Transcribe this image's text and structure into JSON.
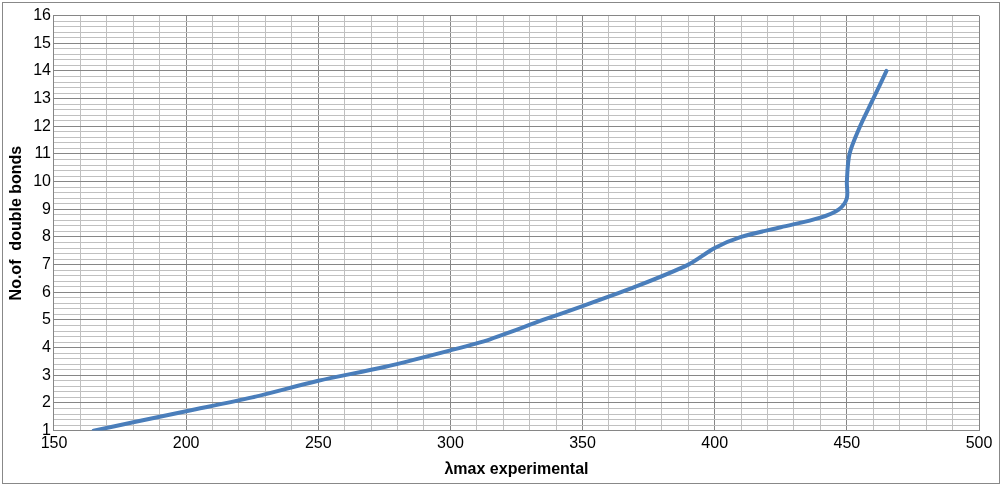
{
  "chart_data": {
    "type": "line",
    "xlabel": "λmax experimental",
    "ylabel": "No.of  double bonds",
    "x": [
      165,
      180,
      200,
      225,
      250,
      275,
      300,
      315,
      335,
      350,
      370,
      390,
      400,
      410,
      425,
      440,
      447,
      450,
      450,
      451,
      455,
      460,
      465
    ],
    "series": [
      {
        "color": "#4a7ebb",
        "values": [
          1,
          1.3,
          1.7,
          2.2,
          2.8,
          3.3,
          3.9,
          4.3,
          5,
          5.5,
          6.2,
          7,
          7.6,
          8,
          8.35,
          8.7,
          9,
          9.4,
          10,
          11,
          12,
          13,
          14
        ]
      }
    ],
    "xlim": [
      150,
      500
    ],
    "ylim": [
      1,
      16
    ],
    "grid": true,
    "legend": false,
    "marker": "none",
    "line_style": "solid",
    "xticks": [
      150,
      {
        "value": 160,
        "label": null
      },
      {
        "value": 170,
        "label": null
      },
      {
        "value": 180,
        "label": null
      },
      {
        "value": 190,
        "label": null
      },
      200,
      {
        "value": 210,
        "label": null
      },
      {
        "value": 220,
        "label": null
      },
      {
        "value": 230,
        "label": null
      },
      {
        "value": 240,
        "label": null
      },
      250,
      {
        "value": 260,
        "label": null
      },
      {
        "value": 270,
        "label": null
      },
      {
        "value": 280,
        "label": null
      },
      {
        "value": 290,
        "label": null
      },
      300,
      {
        "value": 310,
        "label": null
      },
      {
        "value": 320,
        "label": null
      },
      {
        "value": 330,
        "label": null
      },
      {
        "value": 340,
        "label": null
      },
      350,
      {
        "value": 360,
        "label": null
      },
      {
        "value": 370,
        "label": null
      },
      {
        "value": 380,
        "label": null
      },
      {
        "value": 390,
        "label": null
      },
      400,
      {
        "value": 410,
        "label": null
      },
      {
        "value": 420,
        "label": null
      },
      {
        "value": 430,
        "label": null
      },
      {
        "value": 440,
        "label": null
      },
      450,
      {
        "value": 460,
        "label": null
      },
      {
        "value": 470,
        "label": null
      },
      {
        "value": 480,
        "label": null
      },
      {
        "value": 490,
        "label": null
      },
      500
    ],
    "yticks": [
      1,
      {
        "value": 1.2,
        "label": null
      },
      {
        "value": 1.4,
        "label": null
      },
      {
        "value": 1.6,
        "label": null
      },
      {
        "value": 1.8,
        "label": null
      },
      2,
      {
        "value": 2.2,
        "label": null
      },
      {
        "value": 2.4,
        "label": null
      },
      {
        "value": 2.6,
        "label": null
      },
      {
        "value": 2.8,
        "label": null
      },
      3,
      {
        "value": 3.2,
        "label": null
      },
      {
        "value": 3.4,
        "label": null
      },
      {
        "value": 3.6,
        "label": null
      },
      {
        "value": 3.8,
        "label": null
      },
      4,
      {
        "value": 4.2,
        "label": null
      },
      {
        "value": 4.4,
        "label": null
      },
      {
        "value": 4.6,
        "label": null
      },
      {
        "value": 4.8,
        "label": null
      },
      5,
      {
        "value": 5.2,
        "label": null
      },
      {
        "value": 5.4,
        "label": null
      },
      {
        "value": 5.6,
        "label": null
      },
      {
        "value": 5.8,
        "label": null
      },
      6,
      {
        "value": 6.2,
        "label": null
      },
      {
        "value": 6.4,
        "label": null
      },
      {
        "value": 6.6,
        "label": null
      },
      {
        "value": 6.8,
        "label": null
      },
      7,
      {
        "value": 7.2,
        "label": null
      },
      {
        "value": 7.4,
        "label": null
      },
      {
        "value": 7.6,
        "label": null
      },
      {
        "value": 7.8,
        "label": null
      },
      8,
      {
        "value": 8.2,
        "label": null
      },
      {
        "value": 8.4,
        "label": null
      },
      {
        "value": 8.6,
        "label": null
      },
      {
        "value": 8.8,
        "label": null
      },
      9,
      {
        "value": 9.2,
        "label": null
      },
      {
        "value": 9.4,
        "label": null
      },
      {
        "value": 9.6,
        "label": null
      },
      {
        "value": 9.8,
        "label": null
      },
      10,
      {
        "value": 10.2,
        "label": null
      },
      {
        "value": 10.4,
        "label": null
      },
      {
        "value": 10.6,
        "label": null
      },
      {
        "value": 10.8,
        "label": null
      },
      11,
      {
        "value": 11.2,
        "label": null
      },
      {
        "value": 11.4,
        "label": null
      },
      {
        "value": 11.6,
        "label": null
      },
      {
        "value": 11.8,
        "label": null
      },
      12,
      {
        "value": 12.2,
        "label": null
      },
      {
        "value": 12.4,
        "label": null
      },
      {
        "value": 12.6,
        "label": null
      },
      {
        "value": 12.8,
        "label": null
      },
      13,
      {
        "value": 13.2,
        "label": null
      },
      {
        "value": 13.4,
        "label": null
      },
      {
        "value": 13.6,
        "label": null
      },
      {
        "value": 13.8,
        "label": null
      },
      14,
      {
        "value": 14.2,
        "label": null
      },
      {
        "value": 14.4,
        "label": null
      },
      {
        "value": 14.6,
        "label": null
      },
      {
        "value": 14.8,
        "label": null
      },
      15,
      {
        "value": 15.2,
        "label": null
      },
      {
        "value": 15.4,
        "label": null
      },
      {
        "value": 15.6,
        "label": null
      },
      {
        "value": 15.8,
        "label": null
      },
      16
    ]
  }
}
